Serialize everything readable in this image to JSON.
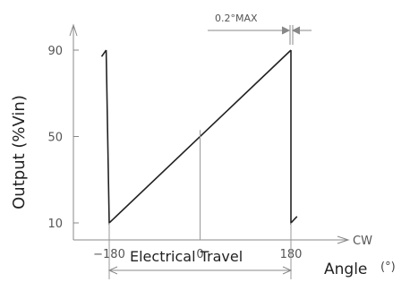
{
  "chart_data": {
    "type": "line",
    "ylabel": "Output (%Vin)",
    "xlabel": "Angle",
    "xlabel_unit": "(°)",
    "x_direction_label": "CW",
    "x_ticks": [
      {
        "value": -180,
        "label": "−180"
      },
      {
        "value": 0,
        "label": "0"
      },
      {
        "value": 180,
        "label": "180"
      }
    ],
    "y_ticks": [
      {
        "value": 10,
        "label": "10"
      },
      {
        "value": 50,
        "label": "50"
      },
      {
        "value": 90,
        "label": "90"
      }
    ],
    "xlim": [
      -200,
      220
    ],
    "ylim": [
      0,
      100
    ],
    "series": [
      {
        "segments": [
          {
            "x": [
              -195,
              -186
            ],
            "y": [
              87,
              90
            ]
          },
          {
            "x": [
              -186,
              -180,
              180
            ],
            "y": [
              90,
              10,
              90
            ]
          },
          {
            "x": [
              180,
              180,
              192
            ],
            "y": [
              90,
              10,
              13
            ]
          }
        ]
      }
    ],
    "marker_x": 0,
    "marker_y": 53,
    "annotations": {
      "max_tolerance": "0.2°MAX",
      "travel": "Electrical Travel"
    },
    "colors": {
      "line": "#222222",
      "axis": "#888888",
      "text": "#222222"
    }
  }
}
